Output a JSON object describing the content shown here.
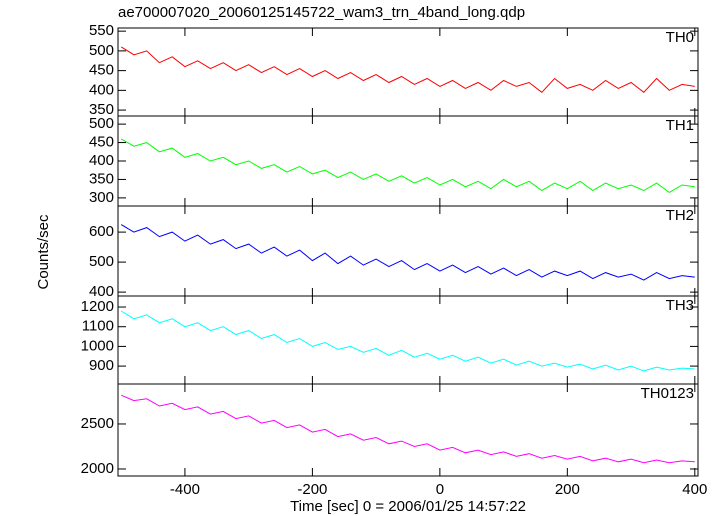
{
  "title": "ae700007020_20060125145722_wam3_trn_4band_long.qdp",
  "xlabel": "Time [sec] 0 = 2006/01/25 14:57:22",
  "ylabel": "Counts/sec",
  "chart_data": [
    {
      "type": "line",
      "label": "TH0",
      "color": "#ff0000",
      "xlim": [
        -505,
        405
      ],
      "xticks": [
        -400,
        -200,
        0,
        200,
        400
      ],
      "ylim": [
        335,
        558
      ],
      "yticks": [
        350,
        400,
        450,
        500,
        550
      ],
      "x": [
        -500,
        -480,
        -460,
        -440,
        -420,
        -400,
        -380,
        -360,
        -340,
        -320,
        -300,
        -280,
        -260,
        -240,
        -220,
        -200,
        -180,
        -160,
        -140,
        -120,
        -100,
        -80,
        -60,
        -40,
        -20,
        0,
        20,
        40,
        60,
        80,
        100,
        120,
        140,
        160,
        180,
        200,
        220,
        240,
        260,
        280,
        300,
        320,
        340,
        360,
        380,
        400
      ],
      "values": [
        510,
        490,
        500,
        470,
        485,
        460,
        475,
        455,
        470,
        450,
        465,
        445,
        460,
        440,
        455,
        435,
        450,
        430,
        445,
        425,
        440,
        420,
        435,
        415,
        430,
        410,
        425,
        405,
        420,
        400,
        425,
        410,
        420,
        395,
        430,
        405,
        415,
        400,
        425,
        405,
        420,
        395,
        430,
        400,
        415,
        410
      ]
    },
    {
      "type": "line",
      "label": "TH1",
      "color": "#00ff00",
      "xlim": [
        -505,
        405
      ],
      "xticks": [
        -400,
        -200,
        0,
        200,
        400
      ],
      "ylim": [
        278,
        522
      ],
      "yticks": [
        300,
        350,
        400,
        450,
        500
      ],
      "x": [
        -500,
        -480,
        -460,
        -440,
        -420,
        -400,
        -380,
        -360,
        -340,
        -320,
        -300,
        -280,
        -260,
        -240,
        -220,
        -200,
        -180,
        -160,
        -140,
        -120,
        -100,
        -80,
        -60,
        -40,
        -20,
        0,
        20,
        40,
        60,
        80,
        100,
        120,
        140,
        160,
        180,
        200,
        220,
        240,
        260,
        280,
        300,
        320,
        340,
        360,
        380,
        400
      ],
      "values": [
        460,
        440,
        450,
        425,
        435,
        410,
        420,
        400,
        410,
        390,
        400,
        380,
        390,
        370,
        385,
        365,
        375,
        355,
        370,
        350,
        365,
        345,
        360,
        340,
        355,
        335,
        350,
        330,
        345,
        325,
        350,
        330,
        345,
        320,
        340,
        325,
        345,
        320,
        340,
        325,
        335,
        320,
        340,
        315,
        335,
        330
      ]
    },
    {
      "type": "line",
      "label": "TH2",
      "color": "#0000ff",
      "xlim": [
        -505,
        405
      ],
      "xticks": [
        -400,
        -200,
        0,
        200,
        400
      ],
      "ylim": [
        387,
        687
      ],
      "yticks": [
        400,
        500,
        600
      ],
      "x": [
        -500,
        -480,
        -460,
        -440,
        -420,
        -400,
        -380,
        -360,
        -340,
        -320,
        -300,
        -280,
        -260,
        -240,
        -220,
        -200,
        -180,
        -160,
        -140,
        -120,
        -100,
        -80,
        -60,
        -40,
        -20,
        0,
        20,
        40,
        60,
        80,
        100,
        120,
        140,
        160,
        180,
        200,
        220,
        240,
        260,
        280,
        300,
        320,
        340,
        360,
        380,
        400
      ],
      "values": [
        625,
        600,
        615,
        585,
        600,
        570,
        590,
        560,
        575,
        545,
        560,
        530,
        550,
        520,
        540,
        505,
        530,
        495,
        520,
        490,
        510,
        485,
        505,
        475,
        495,
        470,
        490,
        465,
        485,
        460,
        480,
        455,
        475,
        450,
        470,
        455,
        470,
        445,
        465,
        450,
        460,
        440,
        465,
        445,
        455,
        450
      ]
    },
    {
      "type": "line",
      "label": "TH3",
      "color": "#00ffff",
      "xlim": [
        -505,
        405
      ],
      "xticks": [
        -400,
        -200,
        0,
        200,
        400
      ],
      "ylim": [
        809,
        1256
      ],
      "yticks": [
        900,
        1000,
        1100,
        1200
      ],
      "x": [
        -500,
        -480,
        -460,
        -440,
        -420,
        -400,
        -380,
        -360,
        -340,
        -320,
        -300,
        -280,
        -260,
        -240,
        -220,
        -200,
        -180,
        -160,
        -140,
        -120,
        -100,
        -80,
        -60,
        -40,
        -20,
        0,
        20,
        40,
        60,
        80,
        100,
        120,
        140,
        160,
        180,
        200,
        220,
        240,
        260,
        280,
        300,
        320,
        340,
        360,
        380,
        400
      ],
      "values": [
        1180,
        1140,
        1160,
        1120,
        1140,
        1100,
        1120,
        1080,
        1100,
        1060,
        1080,
        1040,
        1060,
        1020,
        1040,
        1000,
        1020,
        985,
        1000,
        970,
        990,
        955,
        980,
        945,
        965,
        935,
        955,
        925,
        945,
        915,
        935,
        905,
        925,
        900,
        915,
        895,
        910,
        885,
        905,
        880,
        900,
        875,
        895,
        880,
        890,
        885
      ]
    },
    {
      "type": "line",
      "label": "TH0123",
      "color": "#ff00ff",
      "xlim": [
        -505,
        405
      ],
      "xticks": [
        -400,
        -200,
        0,
        200,
        400
      ],
      "ylim": [
        1922,
        2944
      ],
      "yticks": [
        2000,
        2500
      ],
      "x": [
        -500,
        -480,
        -460,
        -440,
        -420,
        -400,
        -380,
        -360,
        -340,
        -320,
        -300,
        -280,
        -260,
        -240,
        -220,
        -200,
        -180,
        -160,
        -140,
        -120,
        -100,
        -80,
        -60,
        -40,
        -20,
        0,
        20,
        40,
        60,
        80,
        100,
        120,
        140,
        160,
        180,
        200,
        220,
        240,
        260,
        280,
        300,
        320,
        340,
        360,
        380,
        400
      ],
      "values": [
        2820,
        2760,
        2780,
        2700,
        2730,
        2660,
        2690,
        2610,
        2640,
        2560,
        2590,
        2510,
        2540,
        2460,
        2490,
        2410,
        2440,
        2360,
        2390,
        2320,
        2350,
        2280,
        2310,
        2250,
        2280,
        2210,
        2240,
        2180,
        2210,
        2160,
        2190,
        2140,
        2170,
        2120,
        2150,
        2110,
        2140,
        2090,
        2120,
        2080,
        2110,
        2070,
        2100,
        2070,
        2090,
        2080
      ]
    }
  ]
}
